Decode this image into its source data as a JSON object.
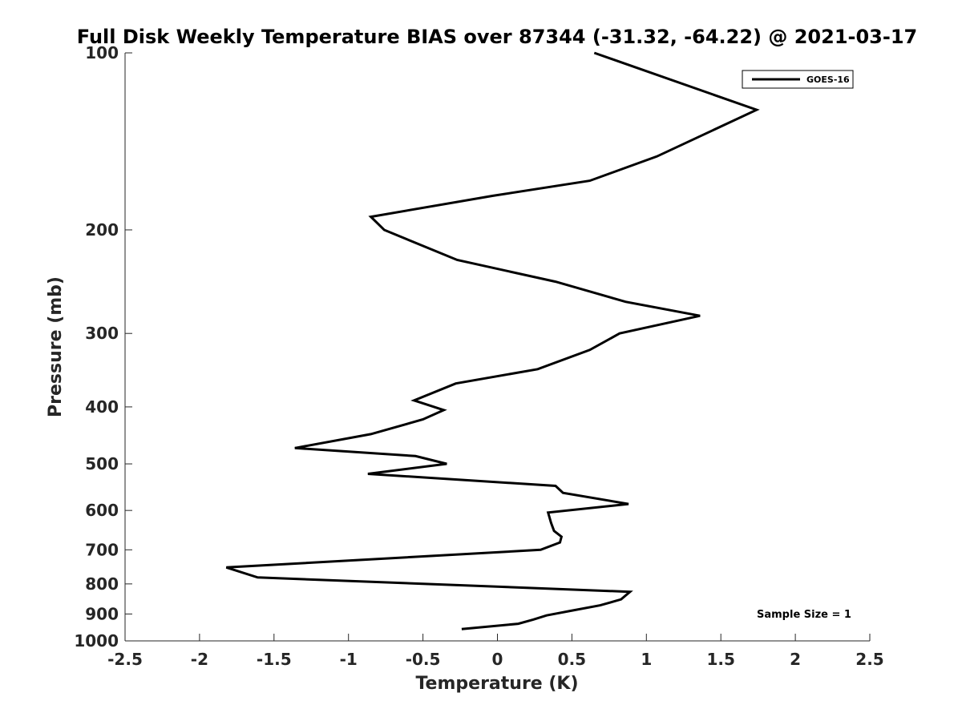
{
  "chart_data": {
    "type": "line",
    "title": "Full Disk Weekly Temperature BIAS over 87344 (-31.32, -64.22) @ 2021-03-17",
    "xlabel": "Temperature (K)",
    "ylabel": "Pressure (mb)",
    "xlim": [
      -2.5,
      2.5
    ],
    "ylim": [
      100,
      1000
    ],
    "y_scale": "log",
    "y_reversed": true,
    "x_ticks": [
      "-2.5",
      "-2",
      "-1.5",
      "-1",
      "-0.5",
      "0",
      "0.5",
      "1",
      "1.5",
      "2",
      "2.5"
    ],
    "y_ticks": [
      "100",
      "200",
      "300",
      "400",
      "500",
      "600",
      "700",
      "800",
      "900",
      "1000"
    ],
    "grid": false,
    "legend": {
      "position": "top-right",
      "entries": [
        "GOES-16"
      ]
    },
    "annotation": "Sample Size = 1",
    "series": [
      {
        "name": "GOES-16",
        "color": "#000000",
        "x": [
          0.65,
          1.74,
          1.07,
          0.62,
          -0.03,
          -0.85,
          -0.76,
          -0.27,
          0.39,
          0.86,
          1.36,
          0.82,
          0.62,
          0.27,
          -0.28,
          -0.56,
          -0.36,
          -0.5,
          -0.85,
          -1.36,
          -0.55,
          -0.34,
          -0.87,
          0.39,
          0.44,
          0.88,
          0.34,
          0.36,
          0.38,
          0.43,
          0.42,
          0.29,
          -1.82,
          -1.61,
          0.89,
          0.83,
          0.69,
          0.48,
          0.33,
          0.24,
          0.14,
          -0.24
        ],
        "y": [
          100,
          125,
          150,
          165,
          175,
          190,
          200,
          225,
          245,
          265,
          280,
          300,
          320,
          345,
          365,
          390,
          405,
          420,
          445,
          470,
          485,
          500,
          520,
          545,
          560,
          585,
          605,
          630,
          650,
          665,
          680,
          700,
          750,
          780,
          825,
          850,
          870,
          890,
          905,
          920,
          935,
          955
        ]
      }
    ]
  }
}
